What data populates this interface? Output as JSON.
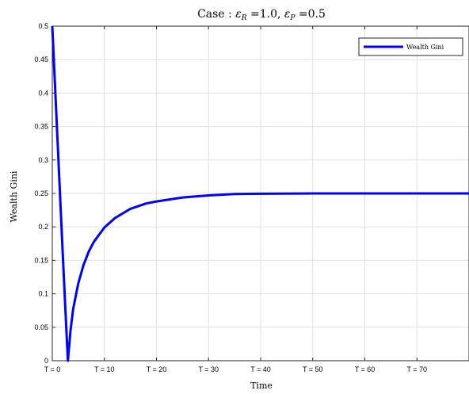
{
  "chart_data": {
    "type": "line",
    "title_prefix": "Case : ",
    "title_eps": "ε",
    "title_sub_R": "R",
    "title_eq1": " =1.0, ",
    "title_sub_P": "P",
    "title_eq2": " =0.5",
    "xlabel": "Time",
    "ylabel": "Wealth Gini",
    "xlim": [
      0,
      80
    ],
    "ylim": [
      0,
      0.5
    ],
    "xticks": [
      0,
      10,
      20,
      30,
      40,
      50,
      60,
      70
    ],
    "xtick_labels": [
      "T = 0",
      "T = 10",
      "T = 20",
      "T = 30",
      "T = 40",
      "T = 50",
      "T = 60",
      "T = 70"
    ],
    "yticks": [
      0,
      0.05,
      0.1,
      0.15,
      0.2,
      0.25,
      0.3,
      0.35,
      0.4,
      0.45,
      0.5
    ],
    "ytick_labels": [
      "0",
      "0.05",
      "0.1",
      "0.15",
      "0.2",
      "0.25",
      "0.3",
      "0.35",
      "0.4",
      "0.45",
      "0.5"
    ],
    "grid": true,
    "legend_position": "top-right",
    "series": [
      {
        "name": "Wealth Gini",
        "color": "#0000ff",
        "x": [
          0,
          0.5,
          1,
          1.5,
          2,
          2.5,
          3,
          3.5,
          4,
          5,
          6,
          7,
          8,
          10,
          12,
          15,
          18,
          20,
          25,
          30,
          35,
          40,
          50,
          60,
          70,
          80
        ],
        "y": [
          0.5,
          0.415,
          0.33,
          0.245,
          0.16,
          0.08,
          0.0,
          0.045,
          0.077,
          0.116,
          0.143,
          0.163,
          0.178,
          0.199,
          0.213,
          0.227,
          0.235,
          0.238,
          0.244,
          0.247,
          0.249,
          0.2495,
          0.25,
          0.25,
          0.25,
          0.25
        ]
      }
    ]
  }
}
